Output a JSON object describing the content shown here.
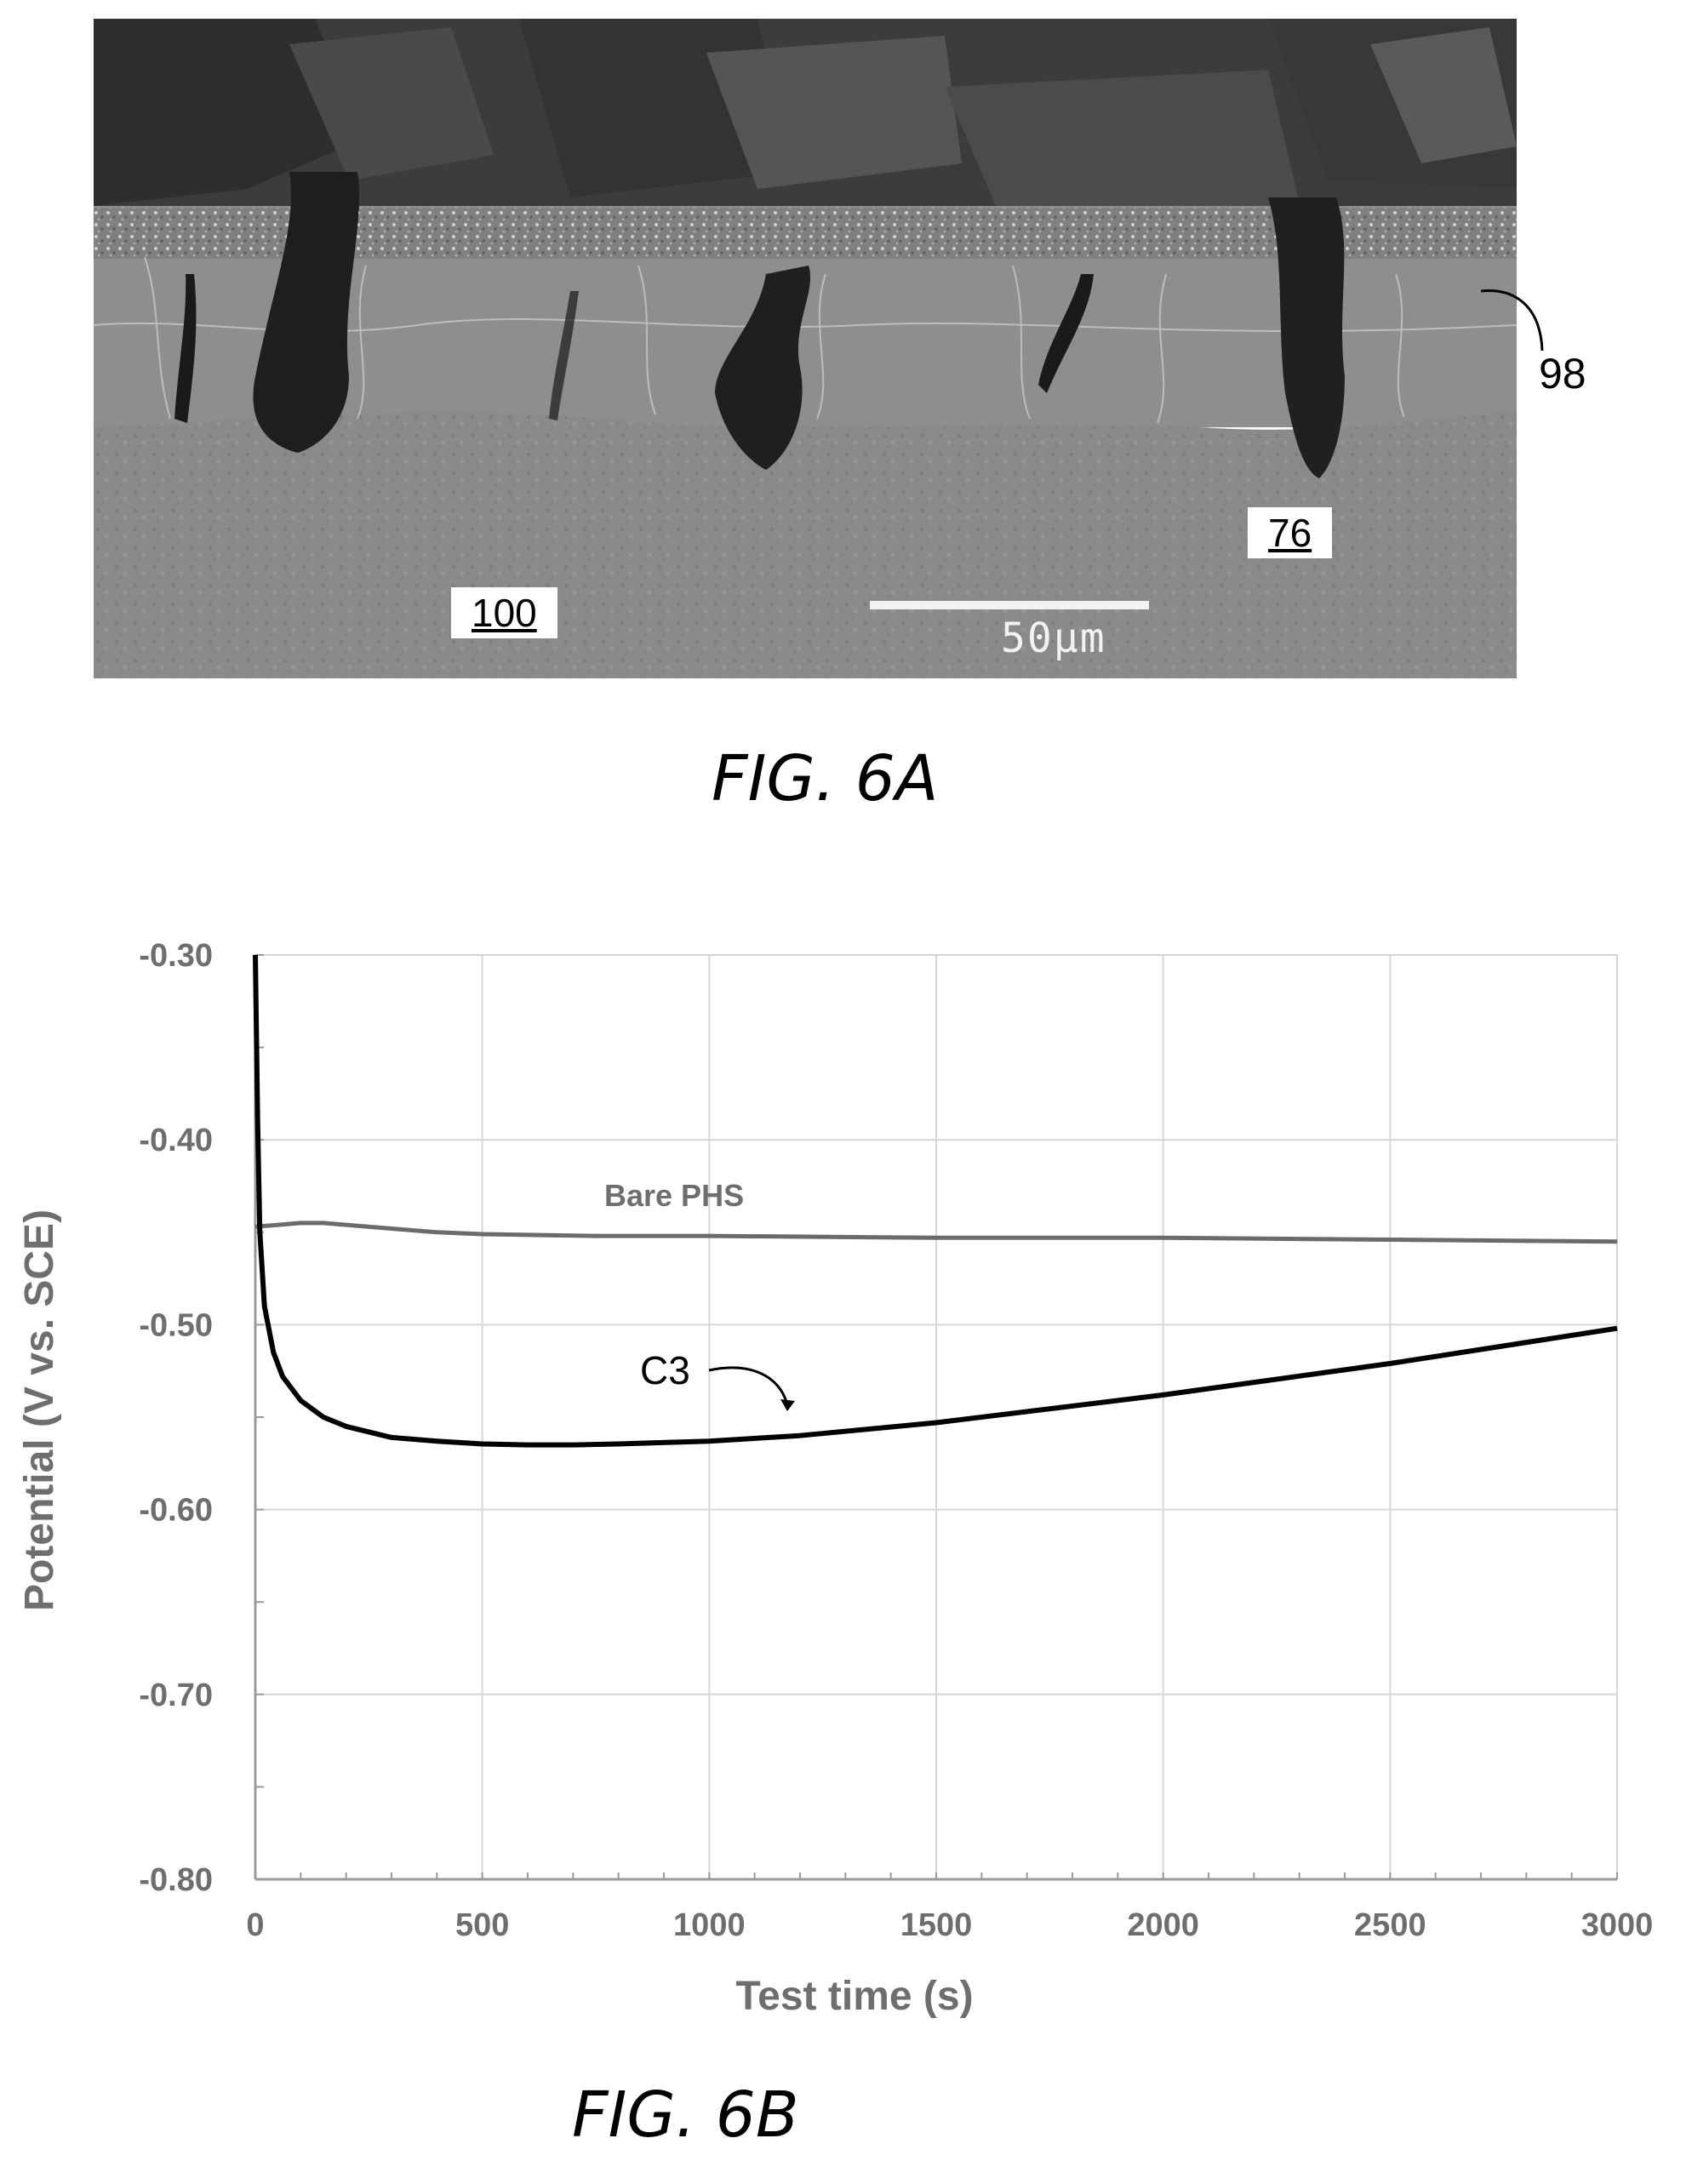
{
  "figure_6a": {
    "caption": "FIG. 6A",
    "labels": {
      "substrate": "100",
      "pit": "76",
      "coating": "98"
    },
    "scale_bar": "50μm"
  },
  "figure_6b": {
    "caption": "FIG. 6B"
  },
  "chart_data": {
    "type": "line",
    "xlabel": "Test time (s)",
    "ylabel": "Potential (V vs. SCE)",
    "xlim": [
      0,
      3000
    ],
    "ylim": [
      -0.8,
      -0.3
    ],
    "xticks": [
      0,
      500,
      1000,
      1500,
      2000,
      2500,
      3000
    ],
    "xtick_labels": [
      "0",
      "500",
      "1000",
      "1500",
      "2000",
      "2500",
      "3000"
    ],
    "yticks": [
      -0.3,
      -0.4,
      -0.5,
      -0.6,
      -0.7,
      -0.8
    ],
    "ytick_labels": [
      "-0.30",
      "-0.40",
      "-0.50",
      "-0.60",
      "-0.70",
      "-0.80"
    ],
    "grid": true,
    "series": [
      {
        "name": "Bare PHS",
        "color": "#6b6b6b",
        "x": [
          0,
          50,
          100,
          150,
          200,
          300,
          400,
          500,
          750,
          1000,
          1500,
          2000,
          2500,
          3000
        ],
        "y": [
          -0.447,
          -0.446,
          -0.445,
          -0.445,
          -0.446,
          -0.448,
          -0.45,
          -0.451,
          -0.452,
          -0.452,
          -0.453,
          -0.453,
          -0.454,
          -0.455
        ]
      },
      {
        "name": "C3",
        "color": "#000000",
        "x": [
          0,
          5,
          10,
          20,
          40,
          60,
          100,
          150,
          200,
          300,
          400,
          500,
          600,
          700,
          800,
          1000,
          1200,
          1500,
          2000,
          2500,
          3000
        ],
        "y": [
          -0.3,
          -0.39,
          -0.45,
          -0.49,
          -0.515,
          -0.528,
          -0.541,
          -0.55,
          -0.555,
          -0.561,
          -0.563,
          -0.5645,
          -0.565,
          -0.565,
          -0.5645,
          -0.563,
          -0.56,
          -0.553,
          -0.538,
          -0.521,
          -0.502
        ]
      }
    ]
  }
}
